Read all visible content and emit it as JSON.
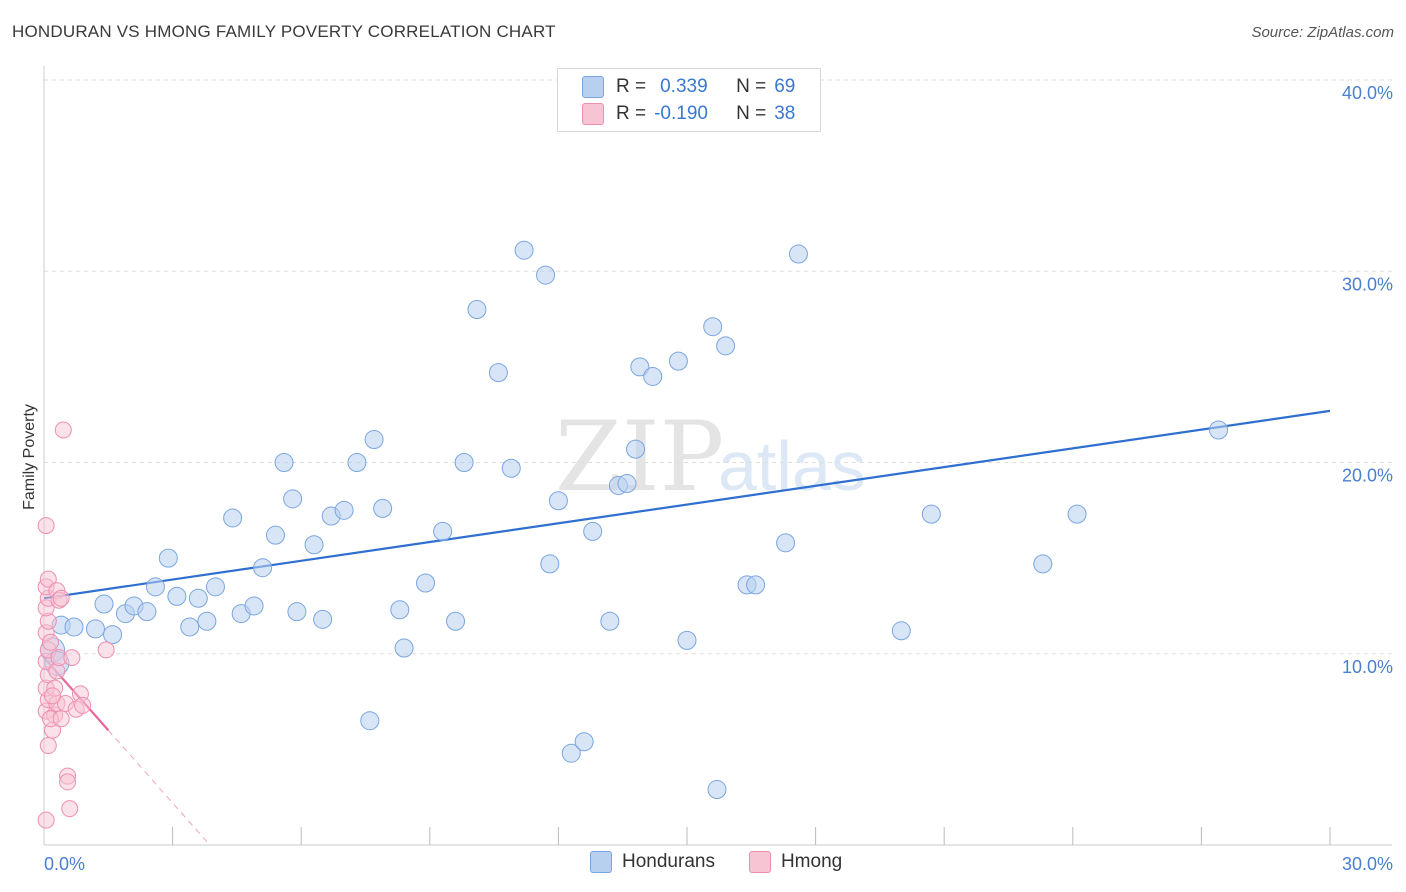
{
  "title": "HONDURAN VS HMONG FAMILY POVERTY CORRELATION CHART",
  "source": "Source: ZipAtlas.com",
  "watermark": {
    "zip": "ZIP",
    "atlas": "atlas"
  },
  "legend": {
    "rows": [
      {
        "r_label": "R =",
        "r_value": "0.339",
        "n_label": "N =",
        "n_value": "69"
      },
      {
        "r_label": "R =",
        "r_value": "-0.190",
        "n_label": "N =",
        "n_value": "38"
      }
    ]
  },
  "bottom_legend": {
    "hondurans": "Hondurans",
    "hmong": "Hmong"
  },
  "colors": {
    "blue_fill": "#b8d0f0",
    "blue_stroke": "#7aa6e0",
    "blue_line": "#2f6fd0",
    "pink_fill": "#f7c4d4",
    "pink_stroke": "#ee8fb0",
    "pink_line": "#e8679a",
    "tick": "#4a7fd0",
    "grid": "#dedede"
  },
  "chart_data": {
    "type": "scatter",
    "title": "HONDURAN VS HMONG FAMILY POVERTY CORRELATION CHART",
    "xlabel": "",
    "ylabel": "Family Poverty",
    "xlim": [
      0,
      30
    ],
    "ylim": [
      0,
      40
    ],
    "x_tick_labels": [
      "0.0%",
      "30.0%"
    ],
    "y_ticks": [
      10,
      20,
      30,
      40
    ],
    "y_tick_labels": [
      "10.0%",
      "20.0%",
      "30.0%",
      "40.0%"
    ],
    "series": [
      {
        "name": "Hondurans",
        "r": 0.339,
        "n": 69,
        "trend": {
          "x": [
            0,
            30
          ],
          "y": [
            12.9,
            22.7
          ]
        },
        "points": [
          [
            0.2,
            10.2
          ],
          [
            0.4,
            11.5
          ],
          [
            0.7,
            11.4
          ],
          [
            1.2,
            11.3
          ],
          [
            1.4,
            12.6
          ],
          [
            1.6,
            11.0
          ],
          [
            1.9,
            12.1
          ],
          [
            2.1,
            12.5
          ],
          [
            2.4,
            12.2
          ],
          [
            2.6,
            13.5
          ],
          [
            2.9,
            15.0
          ],
          [
            3.1,
            13.0
          ],
          [
            3.4,
            11.4
          ],
          [
            3.6,
            12.9
          ],
          [
            3.8,
            11.7
          ],
          [
            4.0,
            13.5
          ],
          [
            4.4,
            17.1
          ],
          [
            4.6,
            12.1
          ],
          [
            4.9,
            12.5
          ],
          [
            5.1,
            14.5
          ],
          [
            5.4,
            16.2
          ],
          [
            5.6,
            20.0
          ],
          [
            5.8,
            18.1
          ],
          [
            5.9,
            12.2
          ],
          [
            6.3,
            15.7
          ],
          [
            6.5,
            11.8
          ],
          [
            6.7,
            17.2
          ],
          [
            7.0,
            17.5
          ],
          [
            7.3,
            20.0
          ],
          [
            7.6,
            6.5
          ],
          [
            7.7,
            21.2
          ],
          [
            7.9,
            17.6
          ],
          [
            8.3,
            12.3
          ],
          [
            8.4,
            10.3
          ],
          [
            8.9,
            13.7
          ],
          [
            9.3,
            16.4
          ],
          [
            9.6,
            11.7
          ],
          [
            9.8,
            20.0
          ],
          [
            10.1,
            28.0
          ],
          [
            10.6,
            24.7
          ],
          [
            10.9,
            19.7
          ],
          [
            11.2,
            31.1
          ],
          [
            11.7,
            29.8
          ],
          [
            11.8,
            14.7
          ],
          [
            12.0,
            18.0
          ],
          [
            12.3,
            4.8
          ],
          [
            12.6,
            5.4
          ],
          [
            12.8,
            16.4
          ],
          [
            13.2,
            11.7
          ],
          [
            13.4,
            18.8
          ],
          [
            13.6,
            18.9
          ],
          [
            13.8,
            20.7
          ],
          [
            13.9,
            25.0
          ],
          [
            14.2,
            24.5
          ],
          [
            14.8,
            25.3
          ],
          [
            15.0,
            10.7
          ],
          [
            15.6,
            27.1
          ],
          [
            15.7,
            2.9
          ],
          [
            15.9,
            26.1
          ],
          [
            16.4,
            13.6
          ],
          [
            16.6,
            13.6
          ],
          [
            17.3,
            15.8
          ],
          [
            17.6,
            30.9
          ],
          [
            20.0,
            11.2
          ],
          [
            20.7,
            17.3
          ],
          [
            23.3,
            14.7
          ],
          [
            24.1,
            17.3
          ],
          [
            27.4,
            21.7
          ],
          [
            0.3,
            9.5
          ]
        ]
      },
      {
        "name": "Hmong",
        "r": -0.19,
        "n": 38,
        "trend": {
          "x": [
            0,
            1.5
          ],
          "y": [
            9.8,
            6.0
          ],
          "dashed_to_x": 3.8
        },
        "points": [
          [
            0.05,
            1.3
          ],
          [
            0.1,
            5.2
          ],
          [
            0.05,
            7.0
          ],
          [
            0.1,
            7.6
          ],
          [
            0.05,
            8.2
          ],
          [
            0.1,
            8.9
          ],
          [
            0.05,
            9.6
          ],
          [
            0.1,
            10.2
          ],
          [
            0.05,
            11.1
          ],
          [
            0.1,
            11.7
          ],
          [
            0.05,
            12.4
          ],
          [
            0.1,
            12.9
          ],
          [
            0.05,
            13.5
          ],
          [
            0.1,
            13.9
          ],
          [
            0.05,
            16.7
          ],
          [
            0.2,
            6.0
          ],
          [
            0.25,
            6.8
          ],
          [
            0.3,
            7.4
          ],
          [
            0.25,
            8.2
          ],
          [
            0.3,
            9.1
          ],
          [
            0.35,
            9.8
          ],
          [
            0.3,
            13.3
          ],
          [
            0.35,
            12.8
          ],
          [
            0.4,
            12.9
          ],
          [
            0.45,
            21.7
          ],
          [
            0.5,
            7.4
          ],
          [
            0.55,
            3.6
          ],
          [
            0.55,
            3.3
          ],
          [
            0.6,
            1.9
          ],
          [
            0.65,
            9.8
          ],
          [
            0.75,
            7.1
          ],
          [
            0.85,
            7.9
          ],
          [
            0.9,
            7.3
          ],
          [
            1.45,
            10.2
          ],
          [
            0.15,
            6.6
          ],
          [
            0.4,
            6.6
          ],
          [
            0.2,
            7.8
          ],
          [
            0.15,
            10.6
          ]
        ]
      }
    ]
  }
}
